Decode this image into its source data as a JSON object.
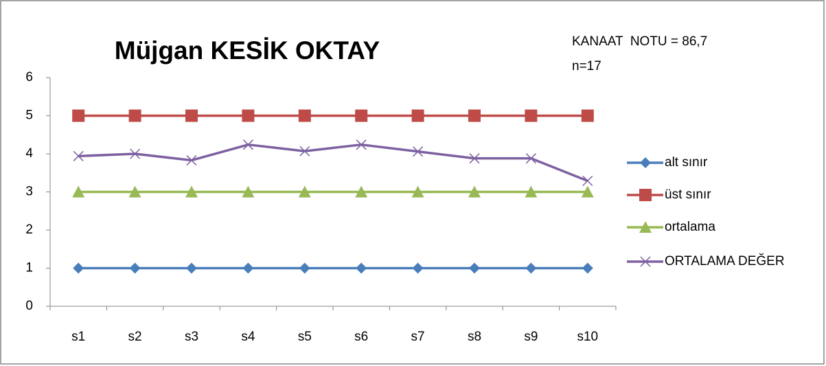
{
  "chart_data": {
    "type": "line",
    "title": "Müjgan KESİK OKTAY",
    "annotations": [
      "KANAAT  NOTU = 86,7",
      "n=17"
    ],
    "categories": [
      "s1",
      "s2",
      "s3",
      "s4",
      "s5",
      "s6",
      "s7",
      "s8",
      "s9",
      "s10"
    ],
    "series": [
      {
        "name": "alt sınır",
        "color": "#4a7ebb",
        "marker": "diamond",
        "values": [
          1,
          1,
          1,
          1,
          1,
          1,
          1,
          1,
          1,
          1
        ]
      },
      {
        "name": "üst sınır",
        "color": "#be4b48",
        "marker": "square",
        "values": [
          5,
          5,
          5,
          5,
          5,
          5,
          5,
          5,
          5,
          5
        ]
      },
      {
        "name": "ortalama",
        "color": "#98b954",
        "marker": "triangle",
        "values": [
          3,
          3,
          3,
          3,
          3,
          3,
          3,
          3,
          3,
          3
        ]
      },
      {
        "name": "ORTALAMA DEĞER",
        "color": "#7d60a0",
        "marker": "x",
        "values": [
          3.94,
          4.0,
          3.83,
          4.24,
          4.07,
          4.24,
          4.06,
          3.88,
          3.88,
          3.29
        ]
      }
    ],
    "ylim": [
      0,
      6
    ],
    "yticks": [
      0,
      1,
      2,
      3,
      4,
      5,
      6
    ],
    "grid": false,
    "legend": "right"
  }
}
